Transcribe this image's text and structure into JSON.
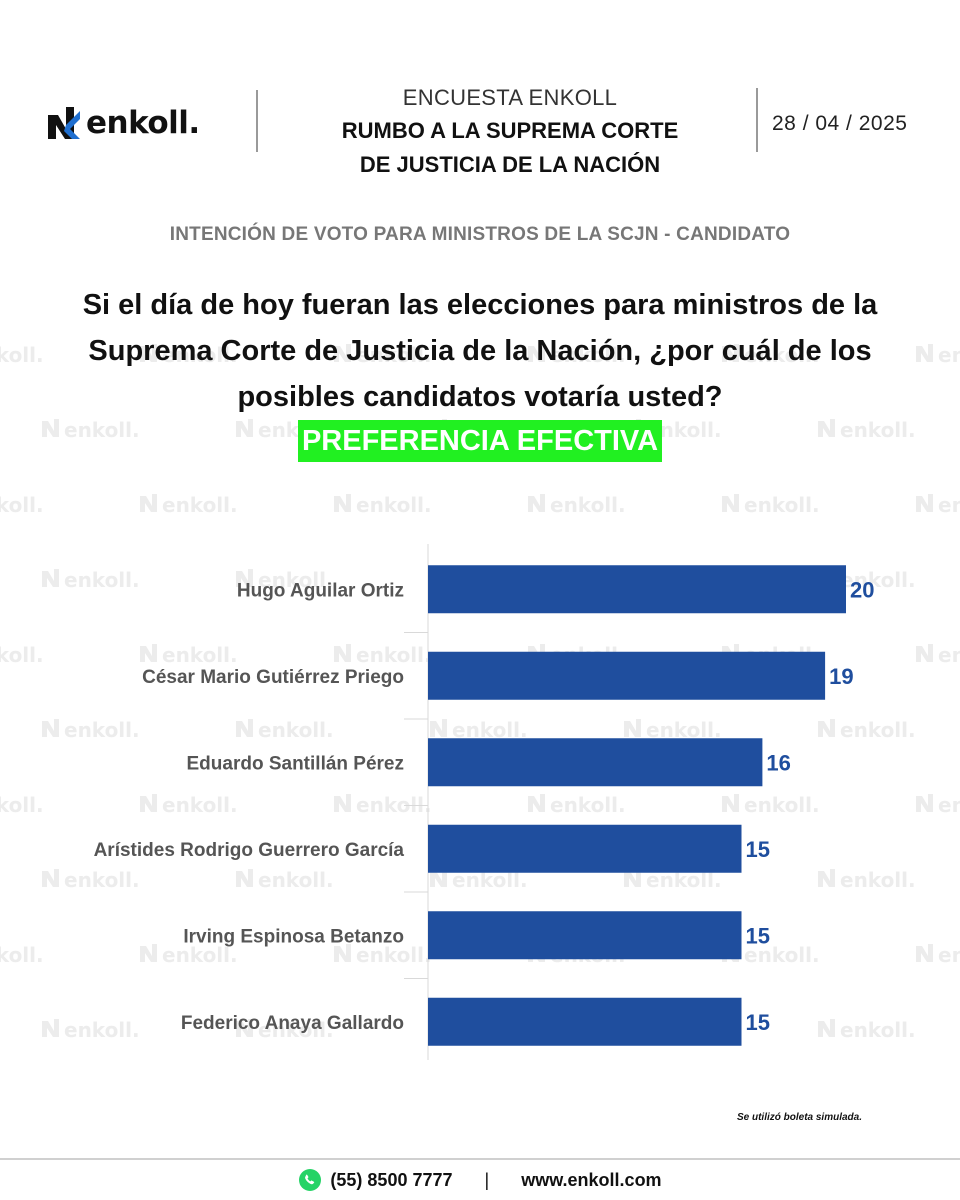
{
  "brand": {
    "logo_text": "enkoll.",
    "watermark_text": "enkoll."
  },
  "header": {
    "survey_label": "ENCUESTA ENKOLL",
    "title_line1": "RUMBO A LA SUPREMA CORTE",
    "title_line2": "DE JUSTICIA DE LA NACIÓN",
    "date": "28 / 04 / 2025"
  },
  "section_label": "INTENCIÓN DE VOTO PARA MINISTROS DE LA SCJN - CANDIDATO",
  "question": {
    "line1": "Si el día de hoy fueran las elecciones para ministros de la",
    "line2": "Suprema Corte de Justicia de la Nación, ¿por cuál de los",
    "line3": "posibles candidatos votaría usted?",
    "highlight": "PREFERENCIA EFECTIVA"
  },
  "chart_data": {
    "type": "bar",
    "orientation": "horizontal",
    "categories": [
      "Hugo Aguilar Ortiz",
      "César Mario Gutiérrez Priego",
      "Eduardo Santillán Pérez",
      "Arístides Rodrigo Guerrero García",
      "Irving Espinosa Betanzo",
      "Federico Anaya Gallardo"
    ],
    "values": [
      20,
      19,
      16,
      15,
      15,
      15
    ],
    "title": "",
    "xlabel": "",
    "ylabel": "",
    "grid": false,
    "legend": "none",
    "bar_color": "#1f4e9e"
  },
  "footnote": "Se utilizó boleta simulada.",
  "footer": {
    "phone": "(55) 8500 7777",
    "separator": "|",
    "website": "www.enkoll.com"
  },
  "colors": {
    "bar": "#1f4e9e",
    "highlight": "#21f021",
    "value_text": "#1f4e9e"
  }
}
